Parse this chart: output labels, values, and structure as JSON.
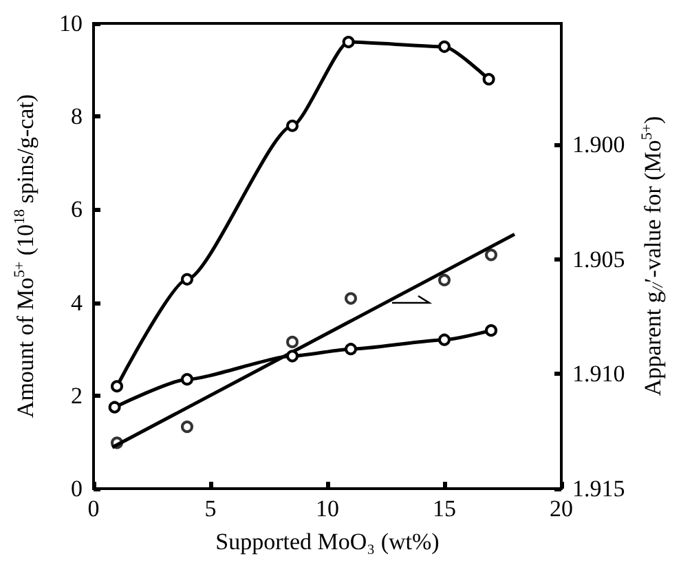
{
  "chart_data": {
    "type": "line",
    "xlabel": "Supported MoO₃ (wt%)",
    "ylabel": "Amount of Mo$^{5+}$ (10$^{18}$ spins/g-cat)",
    "y2label": "Apparent g$_{//}$′-value for (Mo$^{5+}$)",
    "xlim": [
      0,
      20
    ],
    "xticks": [
      0,
      5,
      10,
      15,
      20
    ],
    "ylim": [
      0,
      10
    ],
    "yticks": [
      0,
      2,
      4,
      6,
      8,
      10
    ],
    "y2lim": [
      1.915,
      1.8947
    ],
    "y2ticks": [
      {
        "value": 1.9,
        "label": "1.900"
      },
      {
        "value": 1.905,
        "label": "1.905"
      },
      {
        "value": 1.91,
        "label": "1.910"
      },
      {
        "value": 1.915,
        "label": "1.915"
      }
    ],
    "grid": false,
    "series": [
      {
        "color": "#000000",
        "marker": "circle",
        "x": [
          1,
          4,
          8.5,
          10.9,
          15,
          16.9
        ],
        "values": [
          2.2,
          4.5,
          7.8,
          9.6,
          9.5,
          8.8
        ]
      },
      {
        "color": "#000000",
        "marker": "circle",
        "x": [
          0.9,
          4,
          8.5,
          11,
          15,
          17
        ],
        "values": [
          1.75,
          2.35,
          2.85,
          3.0,
          3.2,
          3.4
        ]
      },
      {
        "type": "scatter",
        "color": "#000000",
        "marker": "circle",
        "axis": "y2",
        "x": [
          1,
          4,
          8.5,
          11,
          15,
          17
        ],
        "values": [
          1.913,
          1.9123,
          1.9086,
          1.9067,
          1.9059,
          1.9048
        ]
      },
      {
        "color": "#000000",
        "marker": "none",
        "axis": "y2",
        "x": [
          0.8,
          18
        ],
        "values": [
          1.9132,
          1.9039
        ]
      }
    ]
  }
}
